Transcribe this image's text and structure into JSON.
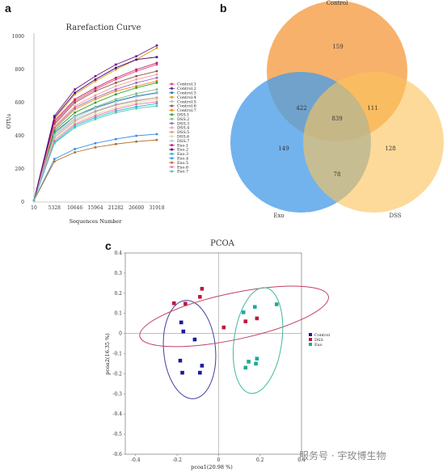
{
  "panels": {
    "a": "a",
    "b": "b",
    "c": "c"
  },
  "watermark": "服务号 · 宇玫博生物",
  "chart_data": [
    {
      "type": "line",
      "title": "Rarefaction Curve",
      "xlabel": "Sequences Number",
      "ylabel": "OTUs",
      "x": [
        10,
        5328,
        10646,
        15964,
        21282,
        26600,
        31918
      ],
      "x_tick_labels": [
        "10",
        "5328",
        "10646",
        "15964",
        "21282",
        "26600",
        "31918"
      ],
      "ylim": [
        0,
        1000
      ],
      "y_ticks": [
        0,
        200,
        400,
        600,
        800,
        1000
      ],
      "y_tick_labels": [
        "0",
        "200",
        "400",
        "600",
        "800",
        "1000"
      ],
      "legend_position": "right",
      "series": [
        {
          "name": "Control.1",
          "color": "#e0407a",
          "values": [
            10,
            480,
            610,
            680,
            740,
            790,
            830
          ]
        },
        {
          "name": "Control.2",
          "color": "#6a1b8a",
          "values": [
            10,
            520,
            680,
            760,
            830,
            880,
            945
          ]
        },
        {
          "name": "Control.3",
          "color": "#1f77b4",
          "values": [
            10,
            420,
            520,
            570,
            610,
            640,
            660
          ]
        },
        {
          "name": "Control.4",
          "color": "#d4a000",
          "values": [
            10,
            500,
            650,
            730,
            800,
            860,
            930
          ]
        },
        {
          "name": "Control.5",
          "color": "#bbbbbb",
          "values": [
            10,
            400,
            500,
            550,
            590,
            615,
            630
          ]
        },
        {
          "name": "Control.6",
          "color": "#8c564b",
          "values": [
            10,
            470,
            600,
            670,
            720,
            760,
            790
          ]
        },
        {
          "name": "Control.7",
          "color": "#ff7f0e",
          "values": [
            10,
            440,
            560,
            620,
            670,
            700,
            730
          ]
        },
        {
          "name": "DSS.1",
          "color": "#2ca02c",
          "values": [
            10,
            430,
            540,
            600,
            650,
            690,
            720
          ]
        },
        {
          "name": "DSS.2",
          "color": "#7fbf7f",
          "values": [
            10,
            410,
            520,
            575,
            620,
            655,
            680
          ]
        },
        {
          "name": "DSS.3",
          "color": "#9467bd",
          "values": [
            10,
            450,
            570,
            630,
            680,
            720,
            750
          ]
        },
        {
          "name": "DSS.4",
          "color": "#ff9896",
          "values": [
            10,
            460,
            580,
            645,
            700,
            740,
            770
          ]
        },
        {
          "name": "DSS.5",
          "color": "#c49c94",
          "values": [
            10,
            390,
            490,
            545,
            585,
            610,
            630
          ]
        },
        {
          "name": "DSS.6",
          "color": "#dbdb8d",
          "values": [
            10,
            380,
            480,
            530,
            570,
            600,
            620
          ]
        },
        {
          "name": "DSS.7",
          "color": "#aec7e8",
          "values": [
            10,
            400,
            510,
            565,
            605,
            635,
            655
          ]
        },
        {
          "name": "Exo.1",
          "color": "#c02060",
          "values": [
            10,
            490,
            620,
            690,
            750,
            800,
            840
          ]
        },
        {
          "name": "Exo.2",
          "color": "#4b0082",
          "values": [
            10,
            510,
            660,
            740,
            810,
            860,
            875
          ]
        },
        {
          "name": "Exo.3",
          "color": "#17becf",
          "values": [
            10,
            360,
            460,
            510,
            550,
            575,
            595
          ]
        },
        {
          "name": "Exo.4",
          "color": "#3a8ee6",
          "values": [
            10,
            260,
            320,
            355,
            380,
            400,
            410
          ]
        },
        {
          "name": "Exo.5",
          "color": "#b07030",
          "values": [
            10,
            245,
            300,
            330,
            350,
            365,
            375
          ]
        },
        {
          "name": "Exo.6",
          "color": "#ff69b4",
          "values": [
            10,
            370,
            470,
            520,
            560,
            590,
            605
          ]
        },
        {
          "name": "Exo.7",
          "color": "#48c9b0",
          "values": [
            10,
            355,
            450,
            500,
            540,
            565,
            580
          ]
        }
      ]
    },
    {
      "type": "venn",
      "sets": [
        {
          "name": "Control",
          "color": "#f5a04a"
        },
        {
          "name": "Exo",
          "color": "#4a9ee8"
        },
        {
          "name": "DSS",
          "color": "#fbc35a"
        }
      ],
      "regions": {
        "control_only": "159",
        "control_exo": "422",
        "control_dss": "111",
        "all_three": "839",
        "exo_only": "149",
        "dss_only": "128",
        "exo_dss": "78"
      }
    },
    {
      "type": "scatter",
      "title": "PCOA",
      "xlabel": "pcoa1(20.98 %)",
      "ylabel": "pcoa2(16.35 %)",
      "xlim": [
        -0.45,
        0.4
      ],
      "ylim": [
        -0.6,
        0.4
      ],
      "x_ticks": [
        -0.4,
        -0.2,
        0,
        0.2,
        0.4
      ],
      "x_tick_labels": [
        "-0.4",
        "-0.2",
        "0",
        "0.2",
        "0.4"
      ],
      "y_ticks": [
        0.4,
        0.3,
        0.2,
        0.1,
        0,
        -0.1,
        -0.2,
        -0.3,
        -0.4,
        -0.5,
        -0.6
      ],
      "y_tick_labels": [
        "0.4",
        "0.3",
        "0.2",
        "0.1",
        "0",
        "-0.1",
        "-0.2",
        "-0.3",
        "-0.4",
        "-0.5",
        "-0.6"
      ],
      "legend_position": "right",
      "series": [
        {
          "name": "Control",
          "color": "#1a1aa0",
          "ellipse_color": "#4040a0",
          "points": [
            [
              -0.18,
              0.055
            ],
            [
              -0.17,
              0.01
            ],
            [
              -0.115,
              -0.03
            ],
            [
              -0.185,
              -0.135
            ],
            [
              -0.175,
              -0.195
            ],
            [
              -0.08,
              -0.16
            ],
            [
              -0.09,
              -0.195
            ]
          ],
          "ellipse": {
            "cx": -0.14,
            "cy": -0.08,
            "rx": 0.125,
            "ry": 0.245,
            "angle": -5
          }
        },
        {
          "name": "DSS",
          "color": "#c0183c",
          "ellipse_color": "#c04060",
          "points": [
            [
              -0.215,
              0.15
            ],
            [
              -0.16,
              0.148
            ],
            [
              -0.08,
              0.222
            ],
            [
              -0.09,
              0.182
            ],
            [
              0.025,
              0.03
            ],
            [
              0.13,
              0.06
            ],
            [
              0.185,
              0.075
            ]
          ],
          "ellipse": {
            "cx": 0.075,
            "cy": 0.085,
            "rx": 0.465,
            "ry": 0.115,
            "angle": -12
          }
        },
        {
          "name": "Exo",
          "color": "#20a898",
          "ellipse_color": "#40b8a0",
          "points": [
            [
              0.12,
              0.105
            ],
            [
              0.175,
              0.132
            ],
            [
              0.28,
              0.145
            ],
            [
              0.145,
              -0.14
            ],
            [
              0.185,
              -0.125
            ],
            [
              0.13,
              -0.17
            ],
            [
              0.18,
              -0.15
            ]
          ],
          "ellipse": {
            "cx": 0.19,
            "cy": -0.035,
            "rx": 0.115,
            "ry": 0.265,
            "angle": 8
          }
        }
      ]
    }
  ]
}
